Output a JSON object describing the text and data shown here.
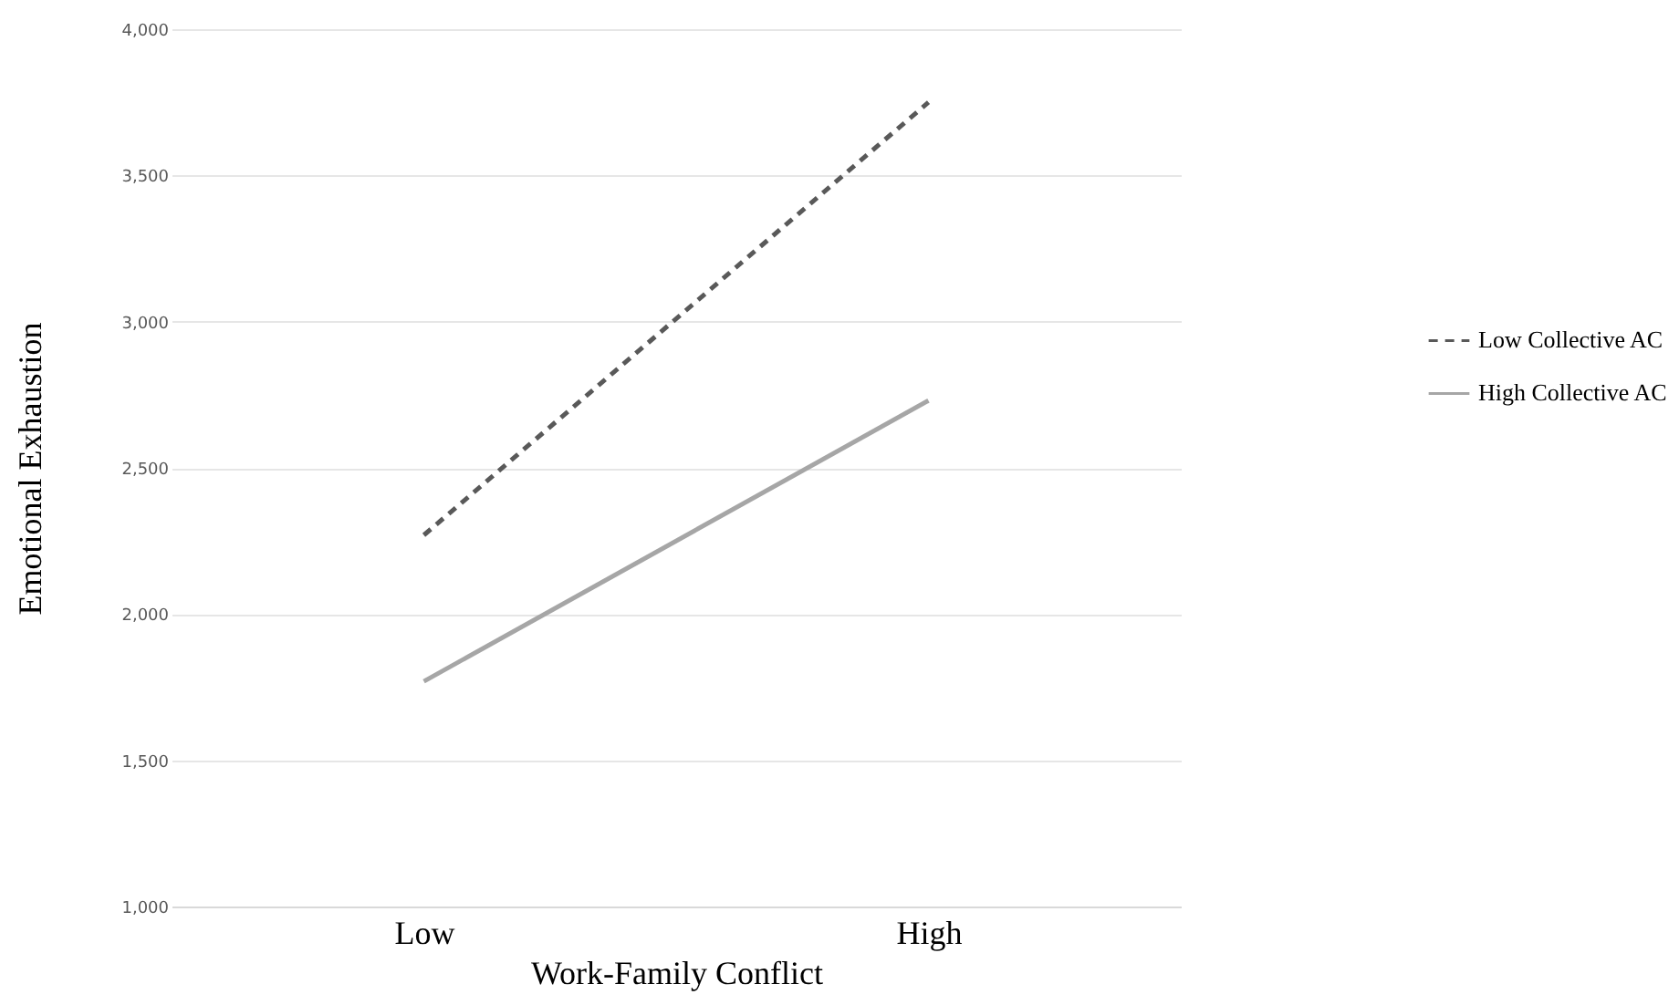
{
  "chart_data": {
    "type": "line",
    "xlabel": "Work-Family Conflict",
    "ylabel": "Emotional Exhaustion",
    "categories": [
      "Low",
      "High"
    ],
    "series": [
      {
        "name": "Low Collective AC",
        "color": "#595959",
        "line_style": "dashed",
        "values": [
          2270,
          3750
        ]
      },
      {
        "name": "High Collective AC",
        "color": "#a6a6a6",
        "line_style": "solid",
        "values": [
          1770,
          2730
        ]
      }
    ],
    "ylim": [
      1000,
      4000
    ],
    "yticks": [
      {
        "value": 1000,
        "label": "1,000"
      },
      {
        "value": 1500,
        "label": "1,500"
      },
      {
        "value": 2000,
        "label": "2,000"
      },
      {
        "value": 2500,
        "label": "2,500"
      },
      {
        "value": 3000,
        "label": "3,000"
      },
      {
        "value": 3500,
        "label": "3,500"
      },
      {
        "value": 4000,
        "label": "4,000"
      }
    ],
    "grid": "y",
    "legend": "right",
    "marker": "none"
  }
}
